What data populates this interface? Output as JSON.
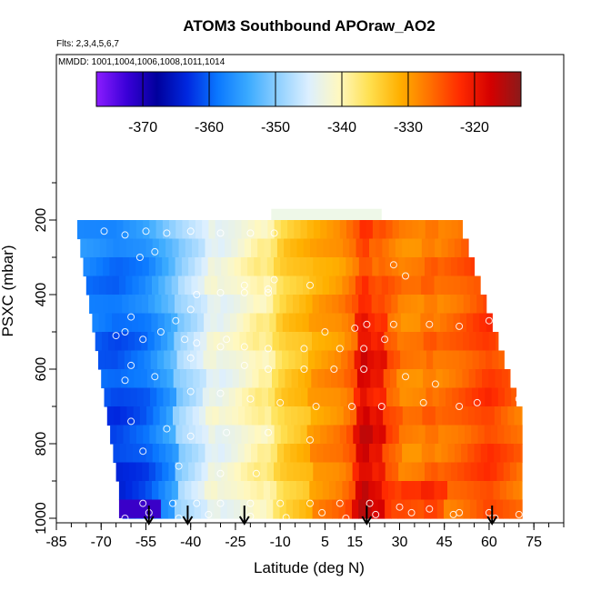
{
  "chart_data": {
    "type": "heatmap",
    "title": "ATOM3 Southbound APOraw_AO2",
    "flights_label": "Flts: 2,3,4,5,6,7",
    "dates_label": "MMDD: 1001,1004,1006,1008,1011,1014",
    "xlabel": "Latitude (deg N)",
    "ylabel": "PSXC (mbar)",
    "xlim": [
      -85,
      85
    ],
    "ylim": [
      1000,
      0
    ],
    "x_ticks": [
      -85,
      -70,
      -55,
      -40,
      -25,
      -10,
      5,
      15,
      30,
      45,
      60,
      75
    ],
    "x_tick_labels": [
      "-85",
      "-70",
      "-55",
      "-40",
      "-25",
      "-10",
      "5",
      "15",
      "30",
      "45",
      "60",
      "75"
    ],
    "y_ticks": [
      200,
      400,
      600,
      800,
      1000
    ],
    "y_tick_labels": [
      "200",
      "400",
      "600",
      "800",
      "1000"
    ],
    "colorbar": {
      "range": [
        -377,
        -313
      ],
      "ticks": [
        -370,
        -360,
        -350,
        -340,
        -330,
        -320
      ],
      "tick_labels": [
        "-370",
        "-360",
        "-350",
        "-340",
        "-330",
        "-320"
      ],
      "colors": [
        "#8b1cff",
        "#3a00d8",
        "#00009c",
        "#0028e0",
        "#0a78ff",
        "#3aaaff",
        "#90d0ff",
        "#dcefff",
        "#fff8c0",
        "#ffe050",
        "#ffb000",
        "#ff7000",
        "#ff2a00",
        "#d40000",
        "#8b1a1a"
      ]
    },
    "bottom_arrows_lat": [
      -54,
      -41,
      -22,
      19,
      61
    ],
    "grid": false,
    "pressure_bins": [
      225,
      275,
      325,
      375,
      425,
      475,
      525,
      575,
      625,
      675,
      725,
      775,
      825,
      875,
      925,
      975
    ],
    "lat_extent_by_bin": [
      [
        -78,
        51
      ],
      [
        -77,
        53
      ],
      [
        -76,
        55
      ],
      [
        -75,
        57
      ],
      [
        -74,
        59
      ],
      [
        -73,
        61
      ],
      [
        -72,
        63
      ],
      [
        -71,
        65
      ],
      [
        -70,
        67
      ],
      [
        -69,
        69
      ],
      [
        -68,
        71
      ],
      [
        -67,
        71
      ],
      [
        -66,
        71
      ],
      [
        -65,
        71
      ],
      [
        -64,
        71
      ],
      [
        -63,
        71
      ]
    ],
    "profile_lat": [
      -78,
      -65,
      -55,
      -45,
      -35,
      -25,
      -15,
      -8,
      0,
      5,
      10,
      15,
      20,
      30,
      40,
      50,
      60,
      71
    ],
    "profile_value": [
      -356,
      -358,
      -356,
      -350,
      -345,
      -342,
      -338,
      -334,
      -332,
      -331,
      -330,
      -327,
      -324,
      -328,
      -328,
      -326,
      -323,
      -327
    ],
    "band_stripes_lat": [
      -33,
      -14,
      18,
      21,
      40
    ],
    "point_samples": [
      [
        -69,
        230
      ],
      [
        -62,
        240
      ],
      [
        -55,
        230
      ],
      [
        -48,
        235
      ],
      [
        -40,
        230
      ],
      [
        -30,
        235
      ],
      [
        -20,
        235
      ],
      [
        -12,
        235
      ],
      [
        -52,
        285
      ],
      [
        -57,
        300
      ],
      [
        -22,
        375
      ],
      [
        -14,
        385
      ],
      [
        28,
        320
      ],
      [
        32,
        350
      ],
      [
        -12,
        360
      ],
      [
        0,
        375
      ],
      [
        -38,
        400
      ],
      [
        -30,
        395
      ],
      [
        -22,
        395
      ],
      [
        -14,
        395
      ],
      [
        -40,
        440
      ],
      [
        -45,
        470
      ],
      [
        -50,
        500
      ],
      [
        -60,
        460
      ],
      [
        -62,
        500
      ],
      [
        -65,
        510
      ],
      [
        -56,
        520
      ],
      [
        -42,
        520
      ],
      [
        -28,
        520
      ],
      [
        5,
        500
      ],
      [
        15,
        490
      ],
      [
        19,
        480
      ],
      [
        28,
        480
      ],
      [
        40,
        480
      ],
      [
        50,
        485
      ],
      [
        60,
        470
      ],
      [
        -38,
        530
      ],
      [
        -30,
        540
      ],
      [
        -22,
        540
      ],
      [
        -14,
        545
      ],
      [
        -2,
        545
      ],
      [
        10,
        545
      ],
      [
        18,
        545
      ],
      [
        25,
        520
      ],
      [
        -60,
        590
      ],
      [
        -40,
        570
      ],
      [
        -22,
        590
      ],
      [
        -14,
        600
      ],
      [
        -2,
        600
      ],
      [
        8,
        600
      ],
      [
        18,
        600
      ],
      [
        32,
        620
      ],
      [
        42,
        640
      ],
      [
        -62,
        630
      ],
      [
        -52,
        620
      ],
      [
        -40,
        660
      ],
      [
        -30,
        665
      ],
      [
        -20,
        680
      ],
      [
        -10,
        690
      ],
      [
        2,
        700
      ],
      [
        14,
        700
      ],
      [
        24,
        700
      ],
      [
        38,
        690
      ],
      [
        50,
        700
      ],
      [
        56,
        690
      ],
      [
        70,
        680
      ],
      [
        -60,
        740
      ],
      [
        -48,
        760
      ],
      [
        -40,
        780
      ],
      [
        -28,
        770
      ],
      [
        -14,
        770
      ],
      [
        0,
        790
      ],
      [
        -56,
        820
      ],
      [
        -44,
        860
      ],
      [
        -30,
        880
      ],
      [
        -18,
        880
      ],
      [
        -56,
        960
      ],
      [
        -46,
        960
      ],
      [
        -38,
        960
      ],
      [
        -30,
        960
      ],
      [
        -20,
        960
      ],
      [
        -10,
        960
      ],
      [
        0,
        960
      ],
      [
        10,
        960
      ],
      [
        20,
        960
      ],
      [
        30,
        970
      ],
      [
        40,
        975
      ],
      [
        50,
        985
      ],
      [
        60,
        985
      ],
      [
        70,
        990
      ],
      [
        -62,
        1000
      ],
      [
        -54,
        985
      ],
      [
        -44,
        1000
      ],
      [
        -34,
        990
      ],
      [
        -20,
        995
      ],
      [
        -8,
        998
      ],
      [
        4,
        985
      ],
      [
        12,
        1000
      ],
      [
        22,
        990
      ],
      [
        34,
        985
      ],
      [
        48,
        990
      ],
      [
        62,
        1000
      ]
    ]
  }
}
